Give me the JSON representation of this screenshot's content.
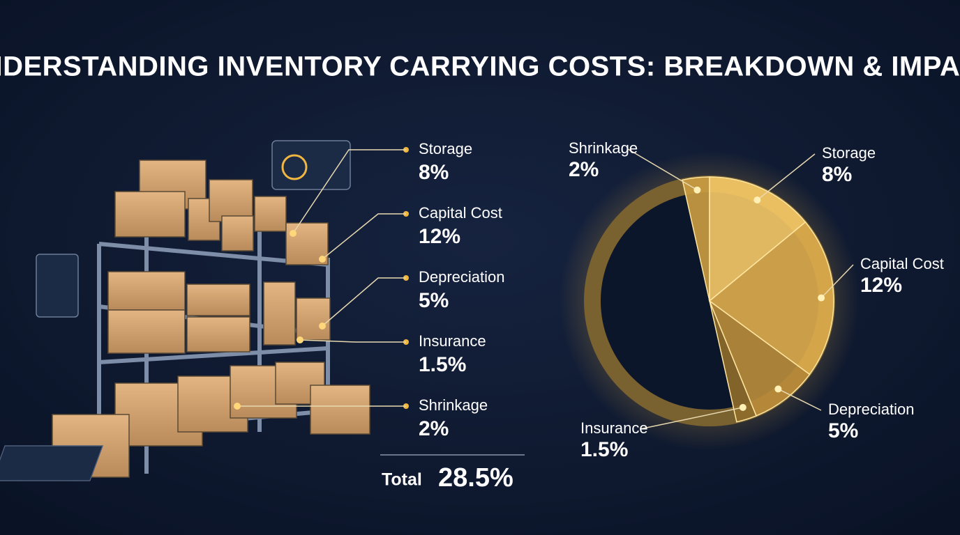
{
  "chart_data": {
    "type": "pie",
    "title": "UNDERSTANDING INVENTORY CARRYING COSTS: BREAKDOWN & IMPACT",
    "categories": [
      "Storage",
      "Capital Cost",
      "Depreciation",
      "Insurance",
      "Shrinkage"
    ],
    "values": [
      8,
      12,
      5,
      1.5,
      2
    ],
    "value_labels": [
      "8%",
      "12%",
      "5%",
      "1.5%",
      "2%"
    ],
    "colors": [
      "#f2c766",
      "#dcaa4c",
      "#b98b3a",
      "#8d6b2b",
      "#c99a42"
    ],
    "total": {
      "label": "Total",
      "value": 28.5,
      "value_label": "28.5%"
    }
  }
}
